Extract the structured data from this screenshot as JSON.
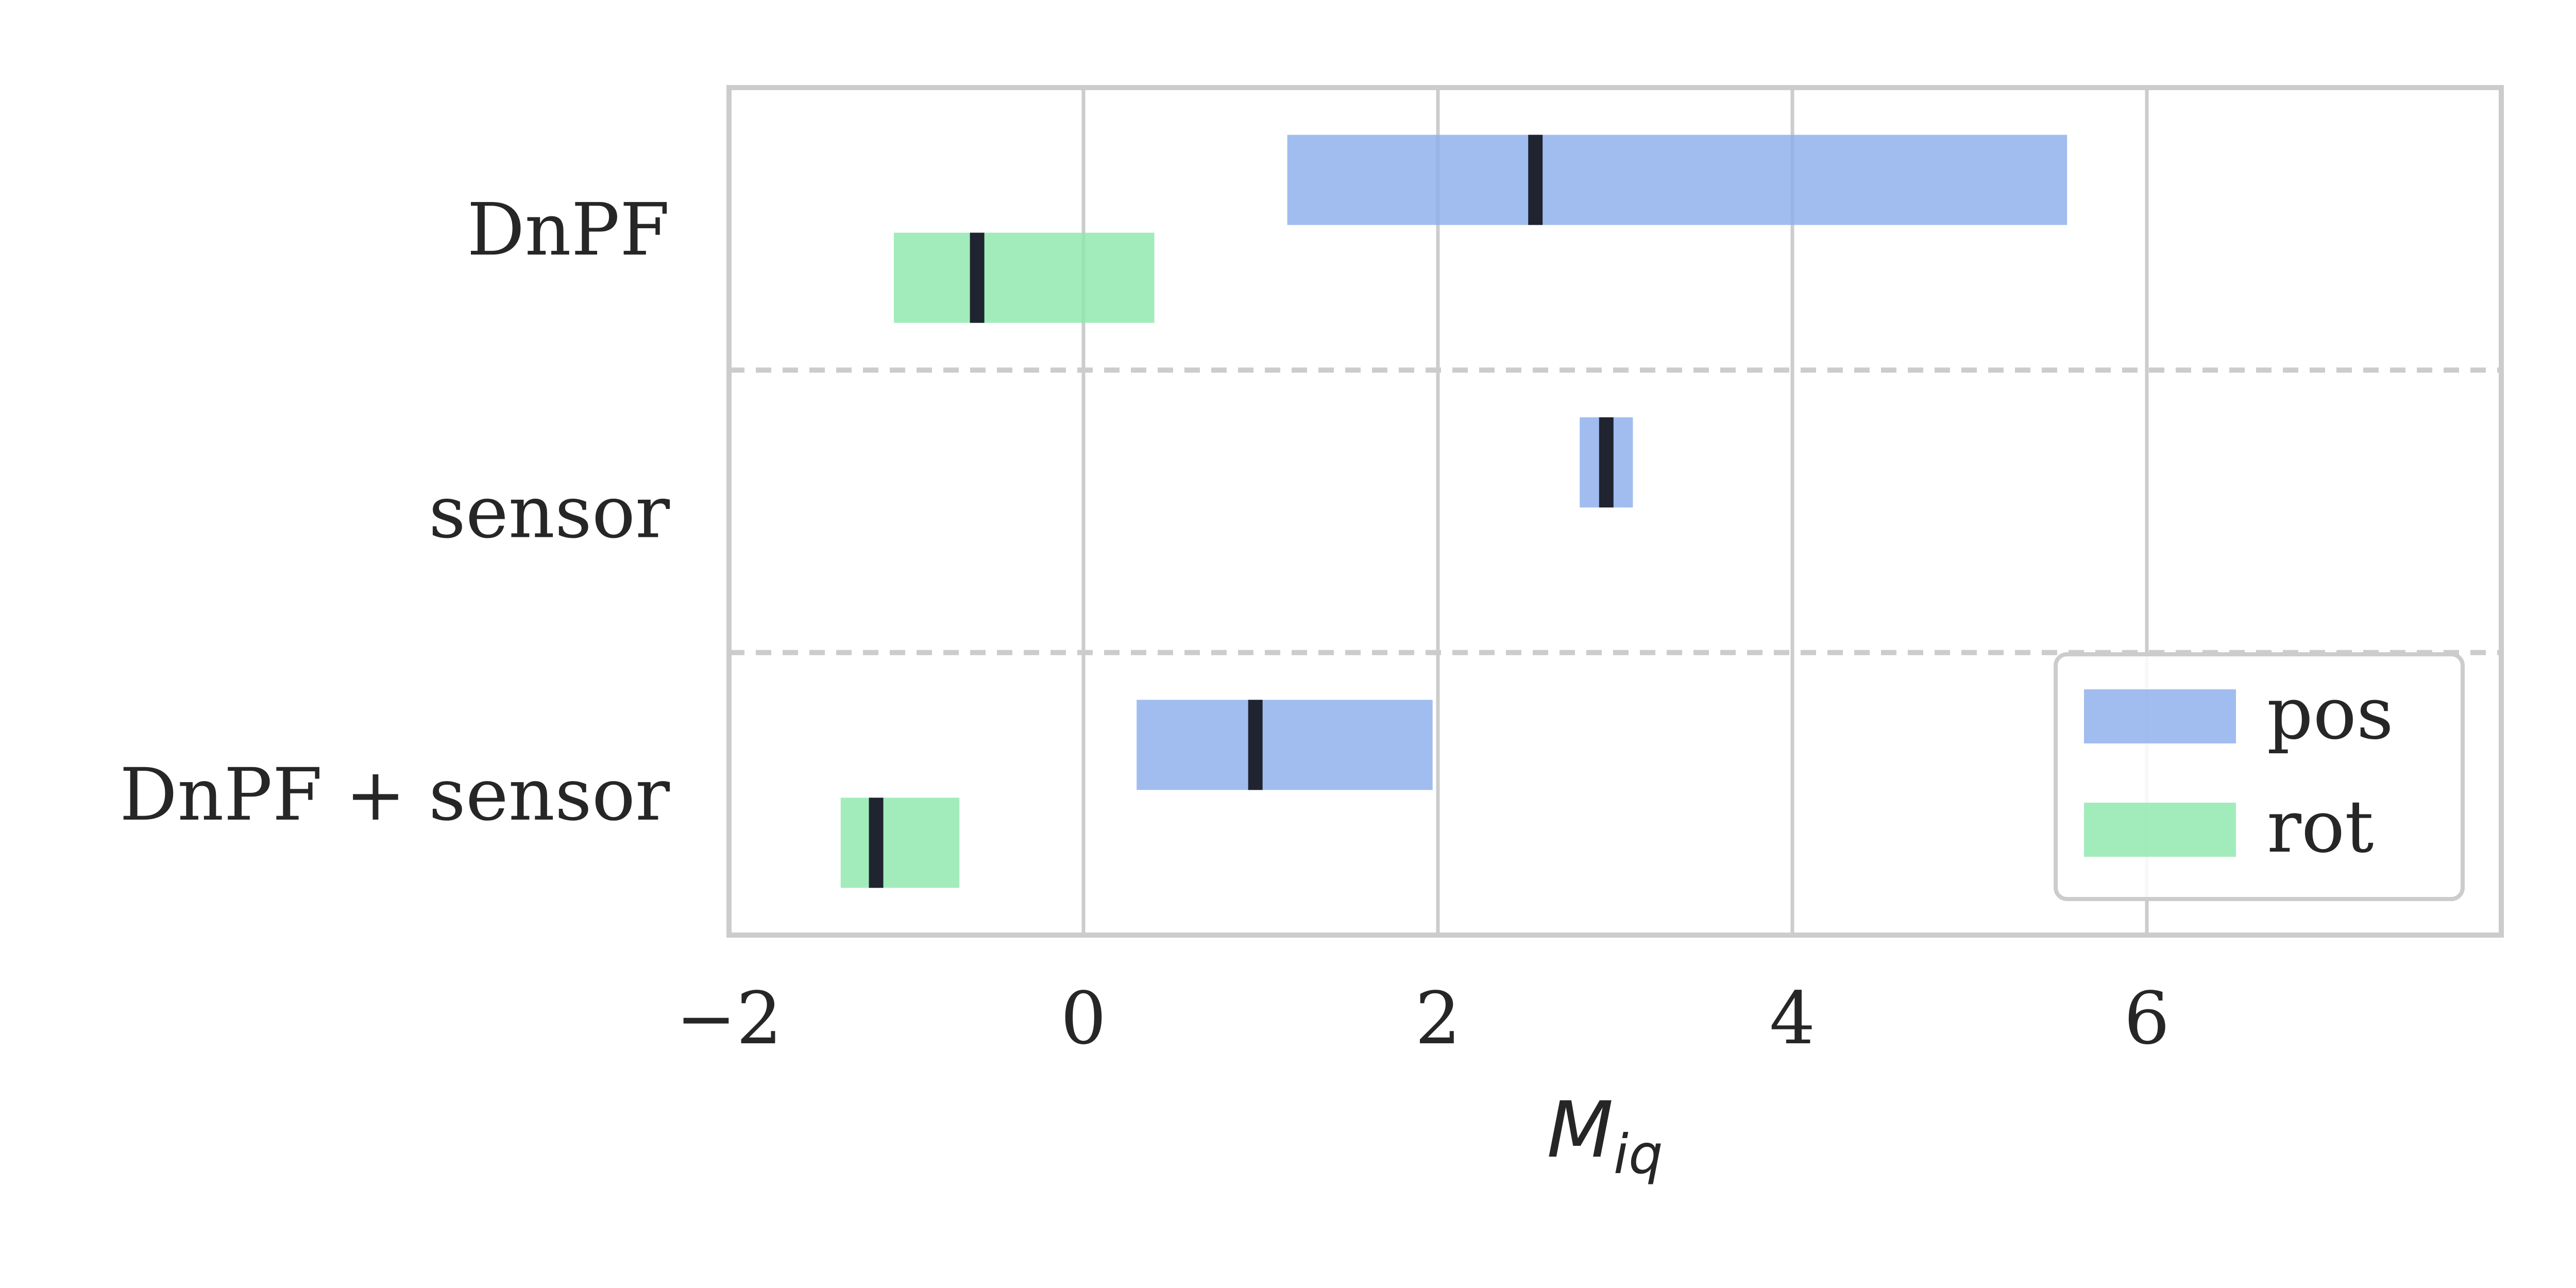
{
  "chart_data": {
    "type": "bar",
    "orientation": "horizontal",
    "subtype": "range-with-marker",
    "title": "",
    "xlabel": "M_iq",
    "xlabel_main": "M",
    "xlabel_sub": "iq",
    "xlim": [
      -2,
      8
    ],
    "xticks": [
      -2,
      0,
      2,
      4,
      6
    ],
    "xtick_labels": [
      "−2",
      "0",
      "2",
      "4",
      "6"
    ],
    "grid": true,
    "legend_position": "lower right",
    "categories": [
      "DnPF",
      "sensor",
      "DnPF + sensor"
    ],
    "series": [
      {
        "name": "pos",
        "color": "#8caeeb",
        "ranges": [
          {
            "category": "DnPF",
            "low": 1.15,
            "high": 5.55,
            "marker": 2.55
          },
          {
            "category": "sensor",
            "low": 2.8,
            "high": 3.1,
            "marker": 2.95
          },
          {
            "category": "DnPF + sensor",
            "low": 0.3,
            "high": 1.97,
            "marker": 0.97
          }
        ]
      },
      {
        "name": "rot",
        "color": "#8de8ad",
        "ranges": [
          {
            "category": "DnPF",
            "low": -1.07,
            "high": 0.4,
            "marker": -0.6
          },
          {
            "category": "sensor",
            "low": null,
            "high": null,
            "marker": null
          },
          {
            "category": "DnPF + sensor",
            "low": -1.37,
            "high": -0.7,
            "marker": -1.17
          }
        ]
      }
    ],
    "marker_color": "#1f2430"
  }
}
